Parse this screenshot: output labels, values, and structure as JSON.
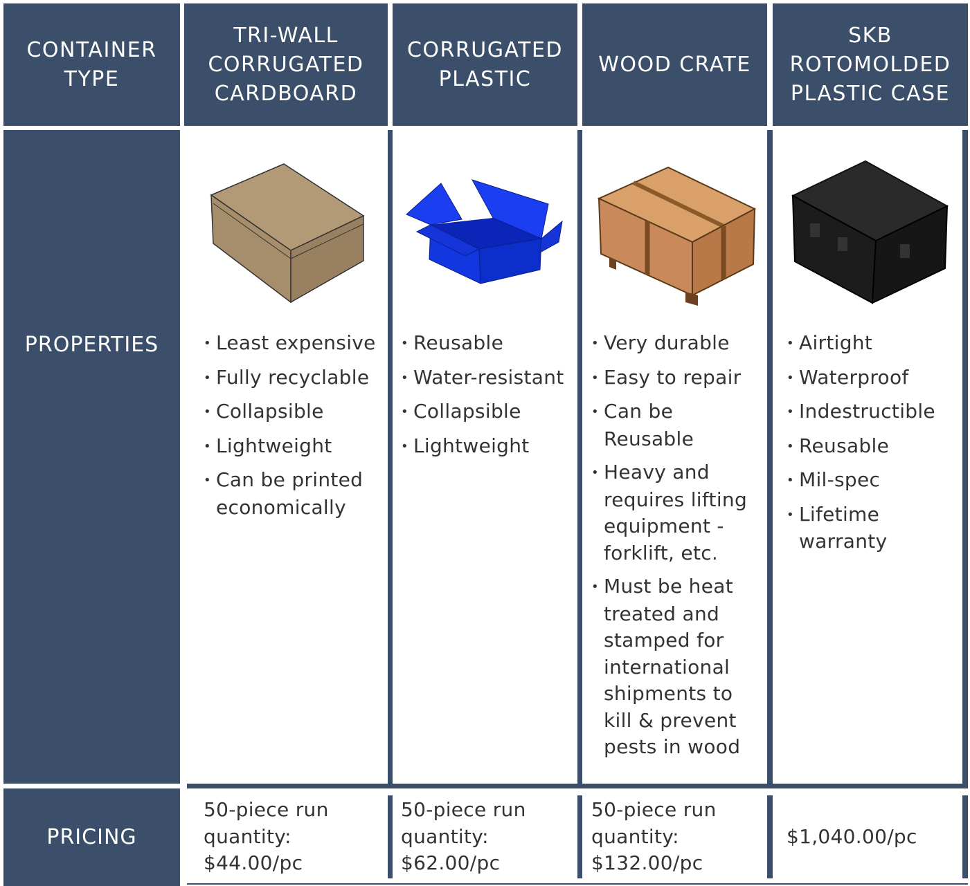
{
  "header": {
    "columns": [
      "CONTAINER TYPE",
      "TRI-WALL CORRUGATED CARDBOARD",
      "CORRUGATED PLASTIC",
      "WOOD CRATE",
      "SKB ROTOMOLDED PLASTIC CASE"
    ]
  },
  "rows": {
    "properties": {
      "label": "PROPERTIES",
      "items": [
        [
          "Least expensive",
          "Fully recyclable",
          "Collapsible",
          "Lightweight",
          "Can be printed economically"
        ],
        [
          "Reusable",
          "Water-resistant",
          "Collapsible",
          "Lightweight"
        ],
        [
          "Very durable",
          "Easy to repair",
          "Can be Reusable",
          "Heavy and requires lifting equipment - forklift, etc.",
          "Must be heat treated and stamped for international shipments to kill & prevent pests in wood"
        ],
        [
          "Airtight",
          "Waterproof",
          "Indestructible",
          "Reusable",
          "Mil-spec",
          "Lifetime warranty"
        ]
      ]
    },
    "pricing": {
      "label": "PRICING",
      "values": [
        "50-piece run quantity: $44.00/pc",
        "50-piece run quantity: $62.00/pc",
        "50-piece run quantity: $132.00/pc",
        "$1,040.00/pc"
      ]
    }
  }
}
